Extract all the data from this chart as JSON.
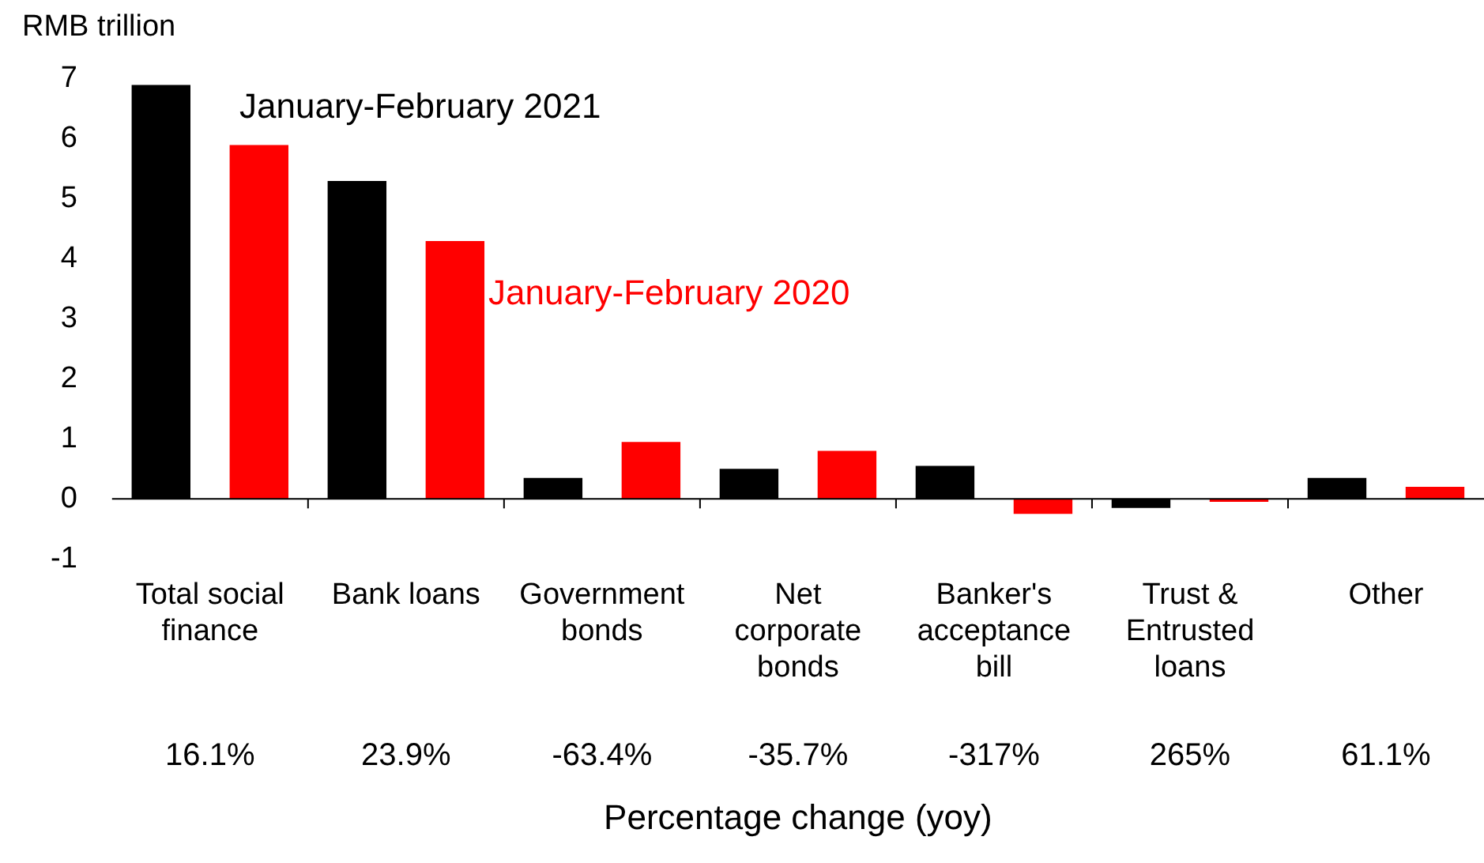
{
  "chart_data": {
    "type": "bar",
    "ylabel": "RMB trillion",
    "xlabel": "Percentage change (yoy)",
    "categories": [
      "Total social finance",
      "Bank loans",
      "Government bonds",
      "Net corporate bonds",
      "Banker's acceptance bill",
      "Trust & Entrusted loans",
      "Other"
    ],
    "series": [
      {
        "name": "January-February 2021",
        "color": "#000000",
        "values": [
          6.9,
          5.3,
          0.35,
          0.5,
          0.55,
          -0.15,
          0.35
        ]
      },
      {
        "name": "January-February 2020",
        "color": "#ff0000",
        "values": [
          5.9,
          4.3,
          0.95,
          0.8,
          -0.25,
          -0.05,
          0.2
        ]
      }
    ],
    "ref_lines": [
      {
        "axis": "y",
        "value": 0,
        "color": "#000000"
      }
    ],
    "ylim": [
      -1,
      7
    ],
    "yticks": [
      -1,
      0,
      1,
      2,
      3,
      4,
      5,
      6,
      7
    ],
    "grid": false,
    "legend": false,
    "annotations": [
      "16.1%",
      "23.9%",
      "-63.4%",
      "-35.7%",
      "-317%",
      "265%",
      "61.1%"
    ]
  }
}
